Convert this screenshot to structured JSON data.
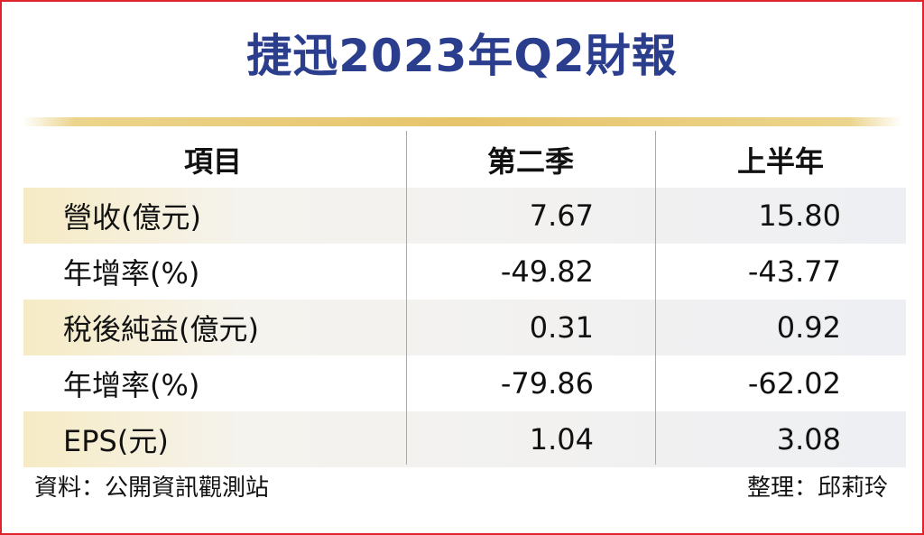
{
  "title": "捷迅2023年Q2財報",
  "table": {
    "headers": [
      "項目",
      "第二季",
      "上半年"
    ],
    "rows": [
      {
        "item": "營收(億元)",
        "q2": "7.67",
        "h1": "15.80"
      },
      {
        "item": "年增率(%)",
        "q2": "-49.82",
        "h1": "-43.77"
      },
      {
        "item": "稅後純益(億元)",
        "q2": "0.31",
        "h1": "0.92"
      },
      {
        "item": "年增率(%)",
        "q2": "-79.86",
        "h1": "-62.02"
      },
      {
        "item": "EPS(元)",
        "q2": "1.04",
        "h1": "3.08"
      }
    ]
  },
  "footer": {
    "source": "資料：公開資訊觀測站",
    "compiled_by": "整理：邱莉玲"
  },
  "colors": {
    "title": "#2b3e8e",
    "border": "#e0242c",
    "gold_rule": "#e6c46a",
    "row_shade": "#f6ebc4"
  }
}
